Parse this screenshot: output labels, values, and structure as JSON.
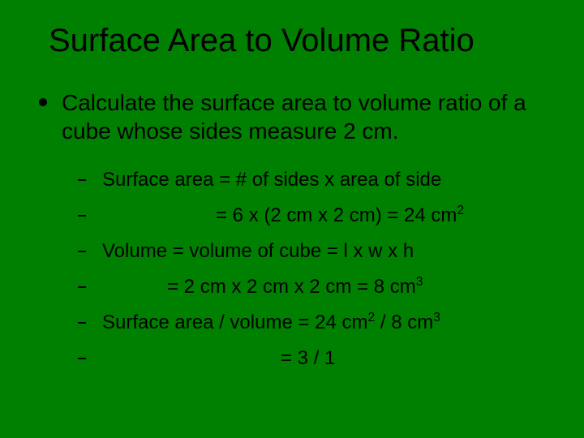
{
  "background_color": "#008000",
  "text_color": "#000000",
  "font_family": "Arial",
  "title": {
    "text": "Surface Area to Volume Ratio",
    "fontsize": 40
  },
  "level1": {
    "text": "Calculate the surface area to volume ratio of a cube whose sides measure 2 cm.",
    "fontsize": 28,
    "bullet": "disc"
  },
  "level2": {
    "fontsize": 24,
    "bullet": "dash",
    "items": [
      {
        "text": "Surface area = # of sides x area of side",
        "indent_class": ""
      },
      {
        "html": "= 6 x (2 cm x 2 cm) = 24 cm<sup>2</sup>",
        "indent_class": "indent1"
      },
      {
        "text": "Volume = volume of cube = l x w x h",
        "indent_class": ""
      },
      {
        "html": "= 2 cm x 2 cm x 2 cm = 8 cm<sup>3</sup>",
        "indent_class": "indent2"
      },
      {
        "html": "Surface area / volume = 24 cm<sup>2</sup> / 8 cm<sup>3</sup>",
        "indent_class": ""
      },
      {
        "text": "= 3 / 1",
        "indent_class": "indent3"
      }
    ]
  }
}
